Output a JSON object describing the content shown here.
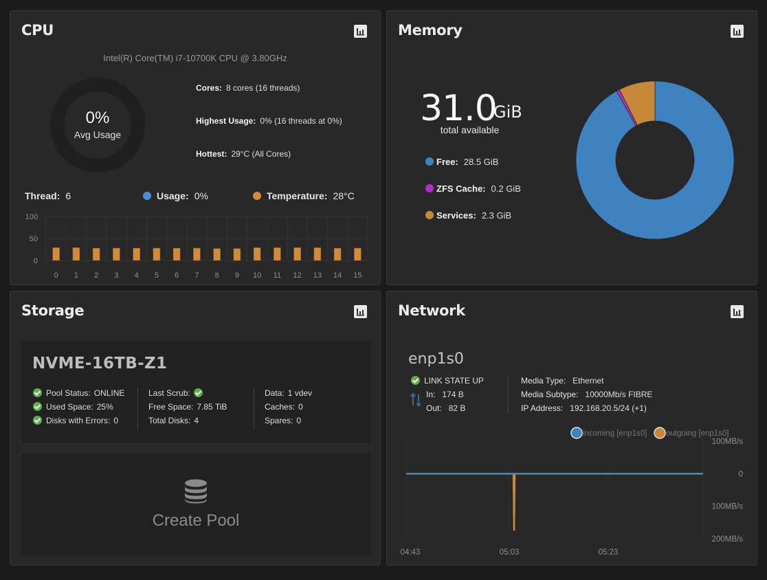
{
  "colors": {
    "usage": "#4a8fd4",
    "temperature": "#d28b3a",
    "free": "#3e82c0",
    "zfs_cache": "#b02fc8",
    "services": "#c8883a",
    "incoming": "#3e82c0",
    "outgoing": "#c8883a",
    "ok": "#5fae4a"
  },
  "cpu": {
    "title": "CPU",
    "report_icon": "bar-chart-icon",
    "model": "Intel(R) Core(TM) i7-10700K CPU @ 3.80GHz",
    "avg_usage_value": "0%",
    "avg_usage_label": "Avg Usage",
    "avg_usage_fraction": 0,
    "cores_label": "Cores:",
    "cores_value": "8 cores (16 threads)",
    "highest_label": "Highest Usage:",
    "highest_value": "0%  (16 threads at 0%)",
    "hottest_label": "Hottest:",
    "hottest_value": "29°C  (All Cores)",
    "thread_label": "Thread:",
    "thread_value": "6",
    "usage_label": "Usage:",
    "usage_value": "0%",
    "temp_label": "Temperature:",
    "temp_value": "28°C"
  },
  "memory": {
    "title": "Memory",
    "report_icon": "bar-chart-icon",
    "total": "31.0",
    "unit": "GiB",
    "total_label": "total available",
    "legend": [
      {
        "label": "Free:",
        "value": "28.5 GiB"
      },
      {
        "label": "ZFS Cache:",
        "value": "0.2 GiB"
      },
      {
        "label": "Services:",
        "value": "2.3 GiB"
      }
    ]
  },
  "storage": {
    "title": "Storage",
    "report_icon": "bar-chart-icon",
    "pool_name": "NVME-16TB-Z1",
    "col1": [
      {
        "label": "Pool Status:",
        "value": "ONLINE"
      },
      {
        "label": "Used Space:",
        "value": "25%"
      },
      {
        "label": "Disks with Errors:",
        "value": "0"
      }
    ],
    "col2": [
      {
        "label": "Last Scrub:",
        "value": ""
      },
      {
        "label": "Free Space:",
        "value": "7.85 TiB"
      },
      {
        "label": "Total Disks:",
        "value": "4"
      }
    ],
    "col3": [
      {
        "label": "Data:",
        "value": "1 vdev"
      },
      {
        "label": "Caches:",
        "value": "0"
      },
      {
        "label": "Spares:",
        "value": "0"
      }
    ],
    "create_pool_label": "Create Pool",
    "create_pool_icon": "database-icon"
  },
  "network": {
    "title": "Network",
    "report_icon": "bar-chart-icon",
    "interface": "enp1s0",
    "link_state": "LINK STATE UP",
    "in_label": "In:",
    "in_value": "174 B",
    "out_label": "Out:",
    "out_value": "82 B",
    "media_type_label": "Media Type:",
    "media_type_value": "Ethernet",
    "media_subtype_label": "Media Subtype:",
    "media_subtype_value": "10000Mb/s FIBRE",
    "ip_label": "IP Address:",
    "ip_value": "192.168.20.5/24 (+1)"
  },
  "chart_data": [
    {
      "type": "bar",
      "series_name": "Temperature",
      "categories": [
        "0",
        "1",
        "2",
        "3",
        "4",
        "5",
        "6",
        "7",
        "8",
        "9",
        "10",
        "11",
        "12",
        "13",
        "14",
        "15"
      ],
      "values": [
        29,
        29,
        28,
        28,
        28,
        28,
        28,
        28,
        27,
        27,
        29,
        29,
        29,
        29,
        28,
        28
      ],
      "ylim": [
        0,
        100
      ],
      "yticks": [
        "100",
        "50",
        "0"
      ],
      "grid": true
    },
    {
      "type": "pie",
      "donut": true,
      "labels": [
        "Free",
        "ZFS Cache",
        "Services"
      ],
      "values": [
        28.5,
        0.2,
        2.3
      ]
    },
    {
      "type": "line",
      "series": [
        {
          "name": "incoming [enp1s0]",
          "values": [
            0,
            0,
            0,
            0,
            0,
            0,
            0,
            0,
            0,
            0,
            0,
            0,
            0,
            0,
            0,
            0,
            0,
            0,
            0,
            0,
            0,
            0,
            0,
            0,
            0,
            0,
            0,
            0,
            0,
            0
          ]
        },
        {
          "name": "outgoing [enp1s0]",
          "values": [
            0,
            0,
            0,
            0,
            0,
            0,
            0,
            0,
            0,
            0,
            0,
            -175,
            0,
            0,
            0,
            0,
            0,
            0,
            0,
            0,
            0,
            0,
            0,
            0,
            0,
            0,
            0,
            0,
            0,
            0
          ]
        }
      ],
      "x_ticks": [
        "04:43",
        "05:03",
        "05:23"
      ],
      "y_ticks": [
        "100MB/s",
        "0",
        "100MB/s",
        "200MB/s"
      ],
      "ylim": [
        -200,
        100
      ],
      "legend_position": "top-right"
    }
  ]
}
